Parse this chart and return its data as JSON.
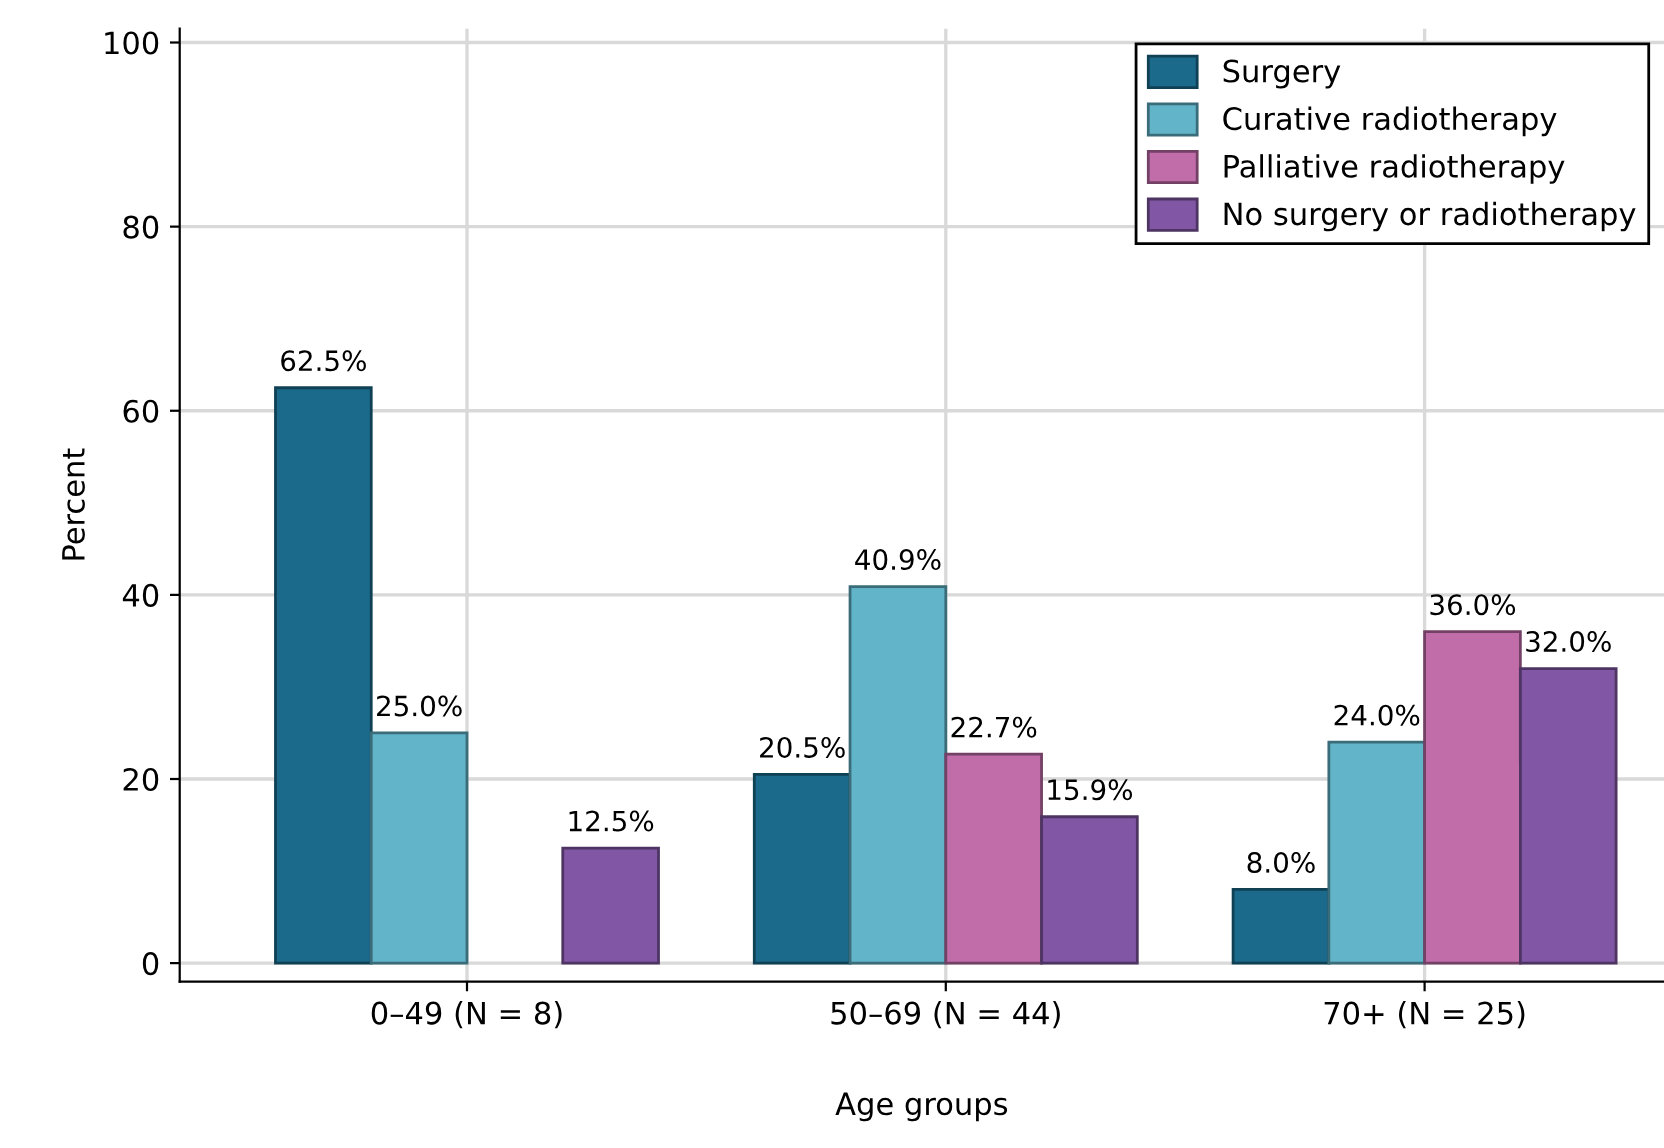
{
  "chart_data": {
    "type": "bar",
    "xlabel": "Age groups",
    "ylabel": "Percent",
    "categories": [
      "0–49 (N = 8)",
      "50–69 (N = 44)",
      "70+ (N = 25)"
    ],
    "series": [
      {
        "name": "Surgery",
        "color": "#1b6a8c",
        "values": [
          62.5,
          20.5,
          8.0
        ],
        "value_labels": [
          "62.5%",
          "20.5%",
          "8.0%"
        ]
      },
      {
        "name": "Curative radiotherapy",
        "color": "#62b4c9",
        "values": [
          25.0,
          40.9,
          24.0
        ],
        "value_labels": [
          "25.0%",
          "40.9%",
          "24.0%"
        ]
      },
      {
        "name": "Palliative radiotherapy",
        "color": "#c06daa",
        "values": [
          null,
          22.7,
          36.0
        ],
        "value_labels": [
          null,
          "22.7%",
          "36.0%"
        ]
      },
      {
        "name": "No surgery or radiotherapy",
        "color": "#8156a4",
        "values": [
          12.5,
          15.9,
          32.0
        ],
        "value_labels": [
          "12.5%",
          "15.9%",
          "32.0%"
        ]
      }
    ],
    "ylim": [
      -2,
      101.5
    ],
    "yticks": [
      0,
      20,
      40,
      60,
      80,
      100
    ],
    "grid": true,
    "legend": "top right"
  }
}
